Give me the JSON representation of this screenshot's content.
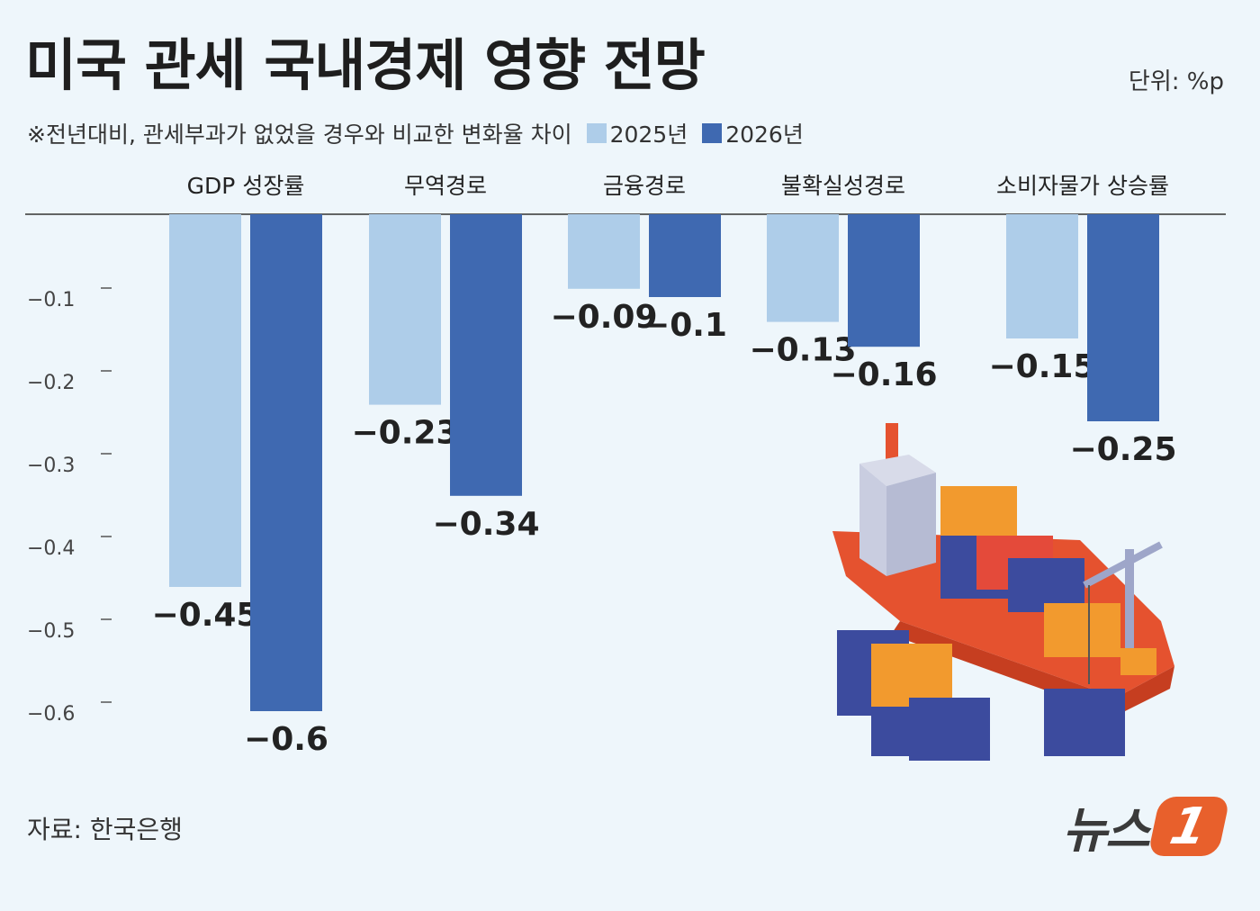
{
  "header": {
    "title": "미국 관세 국내경제 영향 전망",
    "unit": "단위: %p",
    "note": "※전년대비, 관세부과가 없었을 경우와 비교한 변화율 차이"
  },
  "footer": {
    "source": "자료: 한국은행",
    "logo_text": "뉴스",
    "logo_badge": "1"
  },
  "colors": {
    "series_2025": "#aecde9",
    "series_2026": "#3f69b1",
    "background": "#eef6fb",
    "ship_hull": "#e5522f"
  },
  "chart_data": {
    "type": "bar",
    "categories": [
      "GDP 성장률",
      "무역경로",
      "금융경로",
      "불확실성경로",
      "소비자물가 상승률"
    ],
    "series": [
      {
        "name": "2025년",
        "values": [
          -0.45,
          -0.23,
          -0.09,
          -0.13,
          -0.15
        ],
        "labels": [
          "−0.45",
          "−0.23",
          "−0.09",
          "−0.13",
          "−0.15"
        ]
      },
      {
        "name": "2026년",
        "values": [
          -0.6,
          -0.34,
          -0.1,
          -0.16,
          -0.25
        ],
        "labels": [
          "−0.6",
          "−0.34",
          "−0.1",
          "−0.16",
          "−0.25"
        ]
      }
    ],
    "y_ticks": [
      -0.1,
      -0.2,
      -0.3,
      -0.4,
      -0.5,
      -0.6
    ],
    "y_tick_labels": [
      "−0.1",
      "−0.2",
      "−0.3",
      "−0.4",
      "−0.5",
      "−0.6"
    ],
    "ylim": [
      -0.6,
      0
    ],
    "grid": false,
    "legend": "top",
    "illustration": "container-ship"
  }
}
